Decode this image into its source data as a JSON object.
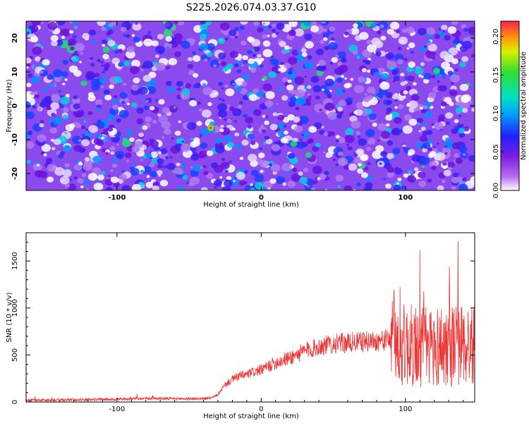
{
  "title": "S225.2026.074.03.37.G10",
  "colors": {
    "line": "#ee3333",
    "axis": "#000000",
    "spectrogram_base": "#7a1fe0"
  },
  "chart_data": [
    {
      "type": "heatmap",
      "xlabel": "Height of straight line (km)",
      "ylabel": "Frequency (Hz)",
      "xlim": [
        -163,
        148
      ],
      "ylim": [
        -25,
        25
      ],
      "x_ticks": [
        -100,
        0,
        100
      ],
      "x_tick_labels": [
        "-100",
        "0",
        "100"
      ],
      "y_ticks": [
        -20,
        -10,
        0,
        10,
        20
      ],
      "y_tick_labels": [
        "-20",
        "-10",
        "0",
        "10",
        "20"
      ],
      "colorbar": {
        "label": "Normalized spectral amplitude",
        "range": [
          0,
          0.22
        ],
        "ticks": [
          0,
          0.05,
          0.1,
          0.15,
          0.2
        ],
        "tick_labels": [
          "0.00",
          "0.05",
          "0.10",
          "0.15",
          "0.20"
        ]
      },
      "peak": {
        "x": -35,
        "y": -6.5,
        "value": 0.22
      }
    },
    {
      "type": "line",
      "xlabel": "Height of straight line (km)",
      "ylabel": "SNR (10 * v/v)",
      "xlim": [
        -163,
        148
      ],
      "ylim": [
        0,
        1800
      ],
      "x_ticks": [
        -100,
        0,
        100
      ],
      "x_tick_labels": [
        "-100",
        "0",
        "100"
      ],
      "y_ticks": [
        0,
        500,
        1000,
        1500
      ],
      "y_tick_labels": [
        "0",
        "500",
        "1000",
        "1500"
      ],
      "series": [
        {
          "name": "SNR",
          "x": [
            -163,
            -150,
            -120,
            -100,
            -80,
            -60,
            -45,
            -35,
            -30,
            -25,
            -20,
            -15,
            -10,
            -5,
            0,
            10,
            20,
            30,
            40,
            50,
            60,
            70,
            80,
            90,
            95,
            100,
            110,
            120,
            130,
            140,
            148
          ],
          "values": [
            20,
            20,
            25,
            30,
            40,
            35,
            35,
            40,
            80,
            180,
            240,
            280,
            290,
            320,
            340,
            420,
            470,
            540,
            590,
            620,
            630,
            640,
            650,
            660,
            620,
            600,
            590,
            590,
            600,
            610,
            600
          ]
        }
      ]
    }
  ]
}
